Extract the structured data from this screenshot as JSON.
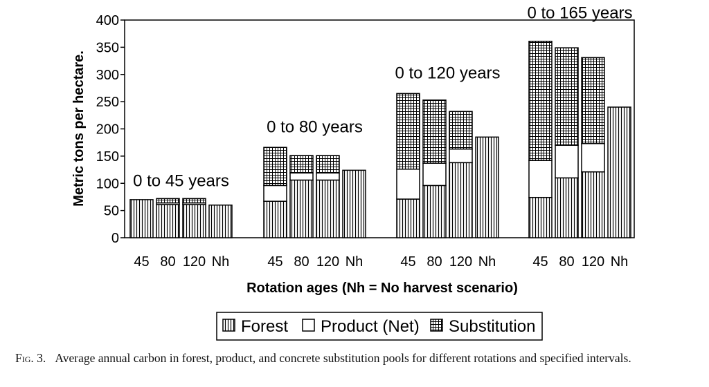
{
  "chart_data": {
    "type": "bar",
    "stacked": true,
    "ylabel": "Metric tons per hectare.",
    "xlabel": "Rotation ages (Nh = No harvest scenario)",
    "ylim": [
      0,
      400
    ],
    "yticks": [
      0,
      50,
      100,
      150,
      200,
      250,
      300,
      350,
      400
    ],
    "categories": [
      "45",
      "80",
      "120",
      "Nh"
    ],
    "groups": [
      {
        "label": "0 to 45 years",
        "bars": [
          {
            "category": "45",
            "forest": 70,
            "product": 0,
            "substitution": 0
          },
          {
            "category": "80",
            "forest": 61,
            "product": 3,
            "substitution": 8
          },
          {
            "category": "120",
            "forest": 61,
            "product": 3,
            "substitution": 8
          },
          {
            "category": "Nh",
            "forest": 60,
            "product": 0,
            "substitution": 0
          }
        ]
      },
      {
        "label": "0 to 80 years",
        "bars": [
          {
            "category": "45",
            "forest": 67,
            "product": 29,
            "substitution": 70
          },
          {
            "category": "80",
            "forest": 106,
            "product": 13,
            "substitution": 32
          },
          {
            "category": "120",
            "forest": 106,
            "product": 13,
            "substitution": 32
          },
          {
            "category": "Nh",
            "forest": 124,
            "product": 0,
            "substitution": 0
          }
        ]
      },
      {
        "label": "0 to 120 years",
        "bars": [
          {
            "category": "45",
            "forest": 71,
            "product": 55,
            "substitution": 139
          },
          {
            "category": "80",
            "forest": 96,
            "product": 41,
            "substitution": 116
          },
          {
            "category": "120",
            "forest": 138,
            "product": 25,
            "substitution": 69
          },
          {
            "category": "Nh",
            "forest": 185,
            "product": 0,
            "substitution": 0
          }
        ]
      },
      {
        "label": "0 to 165 years",
        "bars": [
          {
            "category": "45",
            "forest": 74,
            "product": 68,
            "substitution": 219
          },
          {
            "category": "80",
            "forest": 110,
            "product": 60,
            "substitution": 179
          },
          {
            "category": "120",
            "forest": 121,
            "product": 52,
            "substitution": 158
          },
          {
            "category": "Nh",
            "forest": 240,
            "product": 0,
            "substitution": 0
          }
        ]
      }
    ],
    "legend": {
      "placement": "bottom",
      "entries": [
        {
          "key": "forest",
          "label": "Forest",
          "pattern": "vertical-lines"
        },
        {
          "key": "product",
          "label": "Product (Net)",
          "pattern": "white"
        },
        {
          "key": "substitution",
          "label": "Substitution",
          "pattern": "crosshatch"
        }
      ]
    },
    "grid": false
  },
  "caption": {
    "figure_label": "Fig. 3.",
    "text": "Average annual carbon in forest, product, and concrete substitution pools for different rotations and specified intervals."
  }
}
